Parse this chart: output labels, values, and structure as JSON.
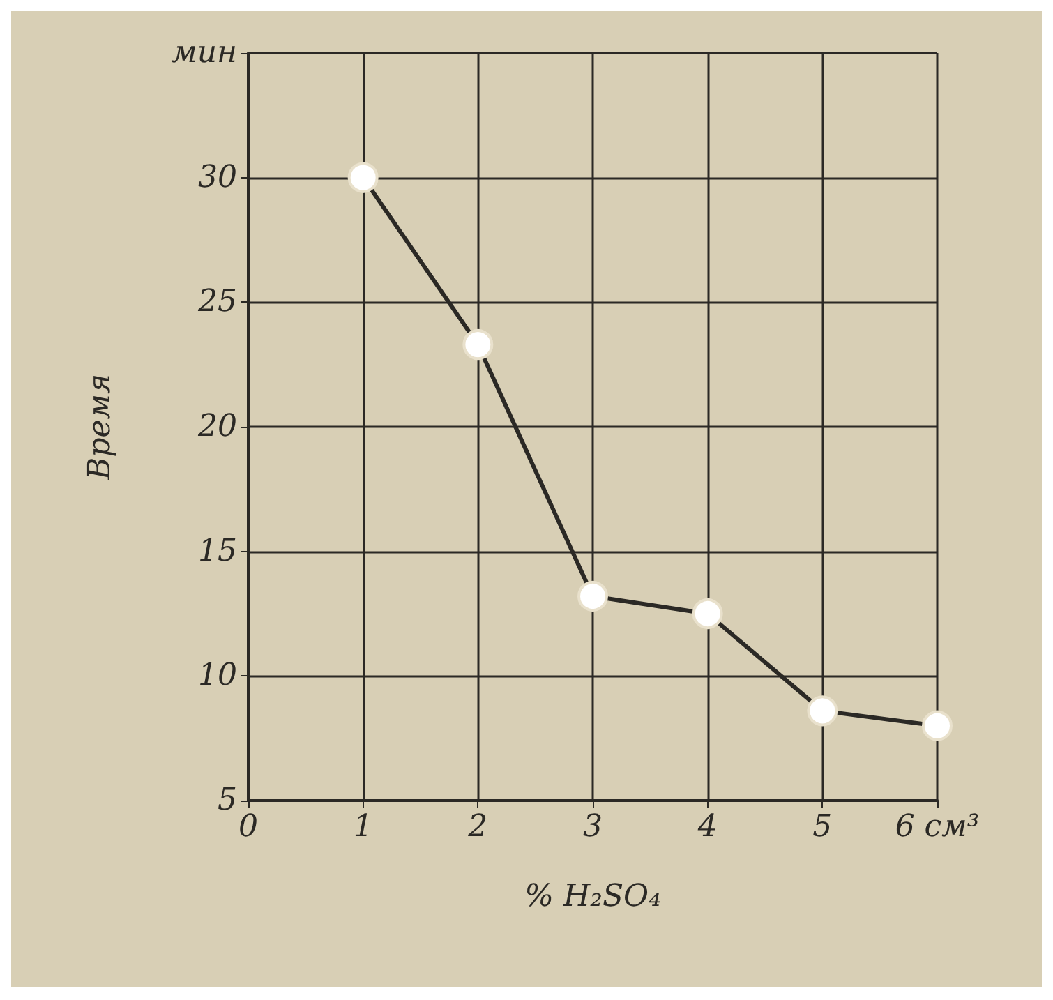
{
  "chart_data": {
    "type": "line",
    "ylabel": "Время",
    "xlabel": "% H₂SO₄",
    "x": [
      1,
      2,
      3,
      4,
      5,
      6
    ],
    "series": [
      {
        "color": "#2b2925",
        "values": [
          30,
          23.3,
          13.2,
          12.5,
          8.6,
          8.0
        ]
      }
    ],
    "xlim": [
      0,
      6
    ],
    "xticks": [
      0,
      1,
      2,
      3,
      4,
      5,
      {
        "value": 6,
        "label": "6 см³"
      }
    ],
    "ylim": [
      5,
      35
    ],
    "yticks": [
      5,
      10,
      15,
      20,
      25,
      30,
      {
        "value": 35,
        "label": "мин"
      }
    ],
    "grid": true,
    "marker": "circle",
    "line_style": "solid"
  }
}
